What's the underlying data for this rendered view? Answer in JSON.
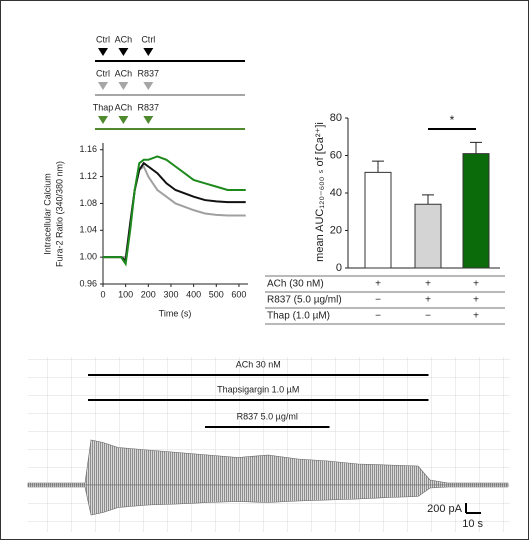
{
  "chart_data": [
    {
      "type": "line",
      "protocol": [
        {
          "labels": [
            "Ctrl",
            "ACh",
            "Ctrl"
          ],
          "color": "#000000"
        },
        {
          "labels": [
            "Ctrl",
            "ACh",
            "R837"
          ],
          "color": "#a6a6a6"
        },
        {
          "labels": [
            "Thap",
            "ACh",
            "R837"
          ],
          "color": "#4f8a2f"
        }
      ],
      "protocol_times": [
        0,
        90,
        200
      ],
      "x_label": "Time (s)",
      "y_label": [
        "Intracellular Calcium",
        "Fura-2 Ratio (340/380 nm)"
      ],
      "x": [
        0,
        40,
        80,
        100,
        120,
        140,
        160,
        180,
        200,
        240,
        280,
        320,
        360,
        400,
        450,
        500,
        550,
        600,
        630
      ],
      "series": [
        {
          "color": "#a0a0a0",
          "values": [
            1.0,
            1.0,
            1.0,
            1.0,
            1.05,
            1.1,
            1.13,
            1.135,
            1.12,
            1.1,
            1.09,
            1.08,
            1.075,
            1.07,
            1.065,
            1.063,
            1.062,
            1.062,
            1.062
          ]
        },
        {
          "color": "#111111",
          "values": [
            1.0,
            1.0,
            1.0,
            0.995,
            1.05,
            1.1,
            1.13,
            1.14,
            1.135,
            1.125,
            1.11,
            1.1,
            1.095,
            1.09,
            1.085,
            1.083,
            1.082,
            1.082,
            1.082
          ]
        },
        {
          "color": "#1e8a1e",
          "values": [
            1.0,
            1.0,
            1.0,
            0.99,
            1.04,
            1.1,
            1.14,
            1.145,
            1.145,
            1.15,
            1.145,
            1.135,
            1.125,
            1.115,
            1.11,
            1.105,
            1.1,
            1.1,
            1.1
          ]
        }
      ],
      "xlim": [
        0,
        640
      ],
      "xticks": [
        0,
        100,
        200,
        300,
        400,
        500,
        600
      ],
      "ylim": [
        0.96,
        1.17
      ],
      "yticks": [
        0.96,
        {
          "value": 1,
          "label": "1.00"
        },
        1.04,
        1.08,
        1.12,
        1.16
      ]
    },
    {
      "type": "bar",
      "y_label": "mean AUC₁₂₀₋₆₀₀ ₛ of [Ca²⁺]i",
      "categories": [
        null,
        null,
        null
      ],
      "values": [
        51,
        34,
        61
      ],
      "errors": [
        6,
        5,
        6
      ],
      "colors": [
        "#ffffff",
        "#d4d4d4",
        "#0b6b0b"
      ],
      "ylim": [
        0,
        80
      ],
      "yticks": [
        0,
        20,
        40,
        60,
        80
      ],
      "significance": "*",
      "table": [
        [
          "ACh (30 nM)",
          "+",
          "+",
          "+"
        ],
        [
          "R837 (5.0 µg/ml)",
          "−",
          "+",
          "+"
        ],
        [
          "Thap (1.0 µM)",
          "−",
          "−",
          "+"
        ]
      ]
    },
    {
      "type": "trace",
      "bars": [
        {
          "label": "ACh 30 nM",
          "start": 40,
          "end": 267
        },
        {
          "label": "Thapsigargin 1.0 µM",
          "start": 40,
          "end": 267
        },
        {
          "label": "R837 5.0 µg/ml",
          "start": 118,
          "end": 201
        }
      ],
      "x": [
        0,
        20,
        38,
        42,
        50,
        60,
        80,
        100,
        120,
        140,
        160,
        180,
        200,
        220,
        240,
        260,
        268,
        280,
        300,
        320
      ],
      "upper": [
        40,
        40,
        40,
        900,
        850,
        750,
        700,
        650,
        600,
        550,
        600,
        520,
        480,
        420,
        400,
        380,
        100,
        40,
        40,
        40
      ],
      "lower": [
        -40,
        -40,
        -40,
        -600,
        -550,
        -450,
        -400,
        -380,
        -350,
        -330,
        -350,
        -320,
        -300,
        -280,
        -250,
        -230,
        -60,
        -40,
        -40,
        -40
      ],
      "xlim": [
        0,
        320
      ],
      "ylim": [
        -1000,
        1500
      ],
      "scalebar": {
        "y": 200,
        "y_label": "200 pA",
        "x": 10,
        "x_label": "10 s"
      }
    }
  ]
}
